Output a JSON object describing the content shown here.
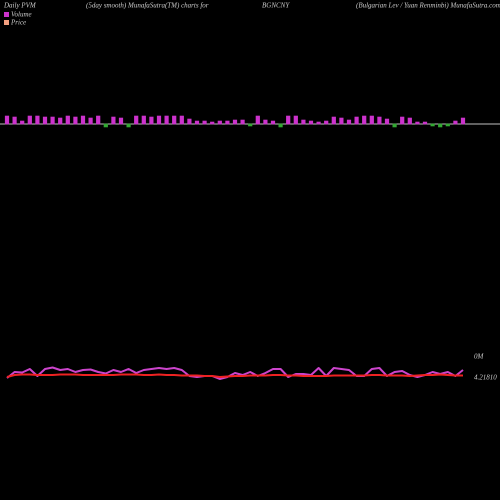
{
  "chart_data": {
    "type": "pvm",
    "title_parts": [
      "Daily PVM",
      "(5day smooth) MunafaSutra(TM) charts for",
      "BGNCNY",
      "(Bulgarian Lev / Yuan Renminbi) MunafaSutra.com"
    ],
    "legend": [
      "Volume",
      "Price"
    ],
    "volume_label": "0M",
    "price_label": "4.21810",
    "volume": {
      "up_color": "#cc33cc",
      "down_color": "#33aa33",
      "baseline_color": "#ffffff",
      "values": [
        8,
        7,
        3,
        8,
        8,
        7,
        7,
        6,
        8,
        7,
        8,
        6,
        8,
        -3,
        7,
        6,
        -3,
        8,
        8,
        7,
        8,
        8,
        8,
        8,
        5,
        3,
        3,
        2,
        3,
        3,
        4,
        4,
        -2,
        8,
        4,
        3,
        -3,
        8,
        8,
        4,
        3,
        2,
        3,
        7,
        6,
        4,
        7,
        8,
        8,
        7,
        5,
        -3,
        7,
        6,
        2,
        2,
        -2,
        -3,
        -2,
        3,
        6
      ]
    },
    "ylim": [
      0,
      100
    ],
    "series": [
      {
        "color": "#cc44cc",
        "values": [
          24,
          36,
          35,
          42,
          28,
          42,
          45,
          40,
          42,
          36,
          40,
          41,
          36,
          33,
          40,
          36,
          42,
          34,
          40,
          42,
          44,
          42,
          44,
          40,
          28,
          26,
          28,
          28,
          22,
          26,
          34,
          30,
          36,
          28,
          34,
          42,
          42,
          26,
          32,
          32,
          30,
          44,
          28,
          44,
          42,
          40,
          28,
          28,
          42,
          44,
          28,
          36,
          38,
          30,
          26,
          30,
          36,
          32,
          36,
          28,
          40
        ]
      },
      {
        "color": "#ee2222",
        "values": [
          26,
          30,
          31,
          31,
          30,
          30,
          30,
          31,
          31,
          31,
          30,
          30,
          30,
          30,
          30,
          31,
          31,
          31,
          30,
          30,
          31,
          30,
          30,
          29,
          29,
          29,
          28,
          28,
          26,
          27,
          28,
          28,
          29,
          29,
          29,
          30,
          30,
          29,
          29,
          28,
          28,
          28,
          28,
          29,
          29,
          29,
          29,
          29,
          30,
          30,
          29,
          29,
          29,
          28,
          29,
          30,
          30,
          31,
          30,
          29,
          29
        ]
      }
    ]
  }
}
